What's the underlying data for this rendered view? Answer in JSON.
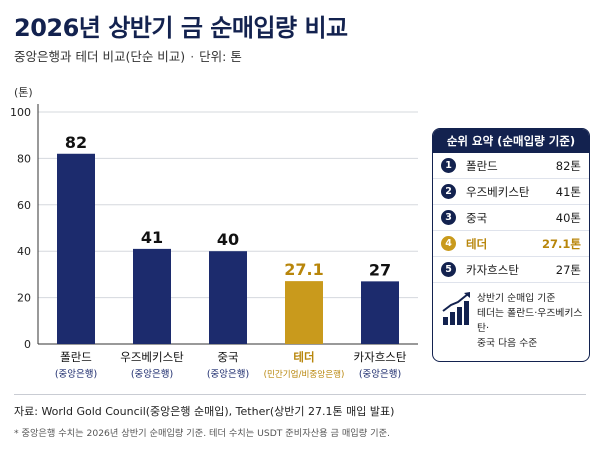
{
  "header": {
    "title": "2026년 상반기 금 순매입량 비교",
    "subtitle": "중앙은행과 테더 비교(단순 비교)",
    "separator": "·",
    "unit": "단위: 톤"
  },
  "colors": {
    "navy": "#13224f",
    "bar_bank": "#1c2b6d",
    "bar_tether": "#c99a1c",
    "gold_text": "#b8860b",
    "grid": "#d5d8de"
  },
  "chart_data": {
    "type": "bar",
    "title": "",
    "ylabel": "(톤)",
    "xlabel": "",
    "ylim": [
      0,
      100
    ],
    "yticks": [
      0,
      20,
      40,
      60,
      80,
      100
    ],
    "grid": true,
    "categories": [
      "폴란드",
      "우즈베키스탄",
      "중국",
      "테더",
      "카자흐스탄"
    ],
    "sublabels": [
      "(중앙은행)",
      "(중앙은행)",
      "(중앙은행)",
      "(민간기업/비중앙은행)",
      "(중앙은행)"
    ],
    "values": [
      82,
      41,
      40,
      27.1,
      27
    ],
    "value_labels": [
      "82",
      "41",
      "40",
      "27.1",
      "27"
    ],
    "highlight_index": 3
  },
  "panel": {
    "title": "순위 요약 (순매입량 기준)",
    "rows": [
      {
        "rank": "1",
        "name": "폴란드",
        "value": "82톤"
      },
      {
        "rank": "2",
        "name": "우즈베키스탄",
        "value": "41톤"
      },
      {
        "rank": "3",
        "name": "중국",
        "value": "40톤"
      },
      {
        "rank": "4",
        "name": "테더",
        "value": "27.1톤"
      },
      {
        "rank": "5",
        "name": "카자흐스탄",
        "value": "27톤"
      }
    ],
    "note_lines": [
      "상반기 순매입 기준",
      "테더는 폴란드·우즈베키스탄·",
      "중국 다음 수준"
    ],
    "note_icon": "rising-chart-icon"
  },
  "footer": {
    "source": "자료: World Gold Council(중앙은행 순매입), Tether(상반기 27.1톤 매입 발표)",
    "footnote": "*  중앙은행 수치는 2026년 상반기 순매입량 기준. 테더 수치는 USDT 준비자산용 금 매입량 기준."
  }
}
